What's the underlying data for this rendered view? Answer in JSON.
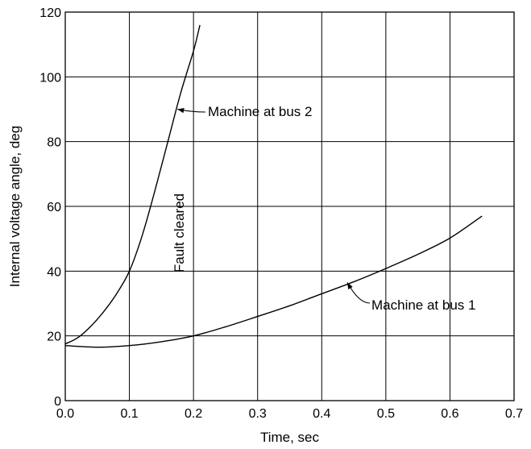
{
  "chart_data": {
    "type": "line",
    "title": "",
    "xlabel": "Time, sec",
    "ylabel": "Internal voltage angle, deg",
    "xlim": [
      0.0,
      0.7
    ],
    "ylim": [
      0,
      120
    ],
    "grid": true,
    "x_ticks": [
      "0.0",
      "0.1",
      "0.2",
      "0.3",
      "0.4",
      "0.5",
      "0.6",
      "0.7"
    ],
    "y_ticks": [
      "0",
      "20",
      "40",
      "60",
      "80",
      "100",
      "120"
    ],
    "series": [
      {
        "name": "Machine at bus 2",
        "x": [
          0.0,
          0.02,
          0.04,
          0.06,
          0.08,
          0.1,
          0.12,
          0.14,
          0.16,
          0.18,
          0.2,
          0.21
        ],
        "y": [
          17.5,
          19.5,
          23,
          27.5,
          33,
          40,
          51,
          65,
          80,
          95,
          108,
          116
        ]
      },
      {
        "name": "Machine at bus 1",
        "x": [
          0.0,
          0.05,
          0.1,
          0.15,
          0.2,
          0.25,
          0.3,
          0.35,
          0.4,
          0.45,
          0.5,
          0.55,
          0.6,
          0.65
        ],
        "y": [
          17,
          16.5,
          17,
          18.2,
          20,
          22.8,
          26,
          29.3,
          33,
          36.7,
          40.8,
          45.2,
          50.2,
          57
        ]
      }
    ],
    "annotations": [
      {
        "text": "Machine at bus 2",
        "at": [
          0.18,
          88
        ]
      },
      {
        "text": "Machine at bus 1",
        "at": [
          0.44,
          36.5
        ]
      },
      {
        "text": "Fault cleared",
        "at": [
          0.18,
          50
        ],
        "rotation": -90
      }
    ]
  }
}
